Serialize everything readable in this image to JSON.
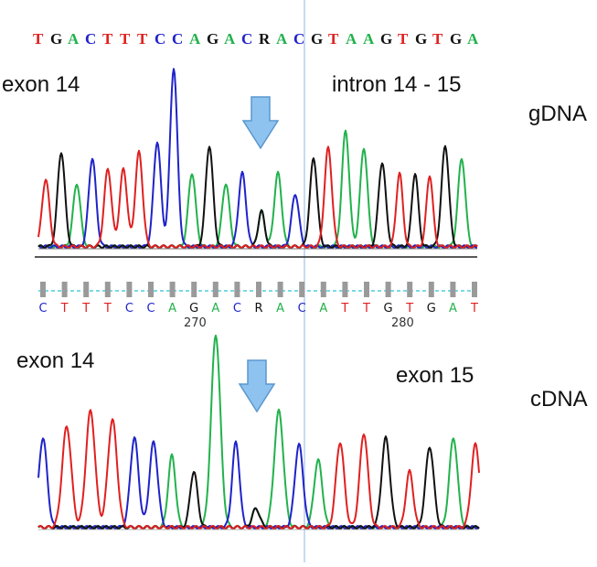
{
  "colors": {
    "A": "#22b24c",
    "C": "#1f23c9",
    "G": "#111111",
    "T": "#e02020",
    "R": "#111111"
  },
  "gdna": {
    "sequence": "TGACTTTCCAGACRACGTAAGTGTGA",
    "label_left": "exon 14",
    "label_right": "intron 14 - 15",
    "tag": "gDNA",
    "peaks": [
      {
        "base": "T",
        "x": 50,
        "h": 0.32,
        "w": 8
      },
      {
        "base": "G",
        "x": 67,
        "h": 0.45,
        "w": 8
      },
      {
        "base": "A",
        "x": 84,
        "h": 0.3,
        "w": 8
      },
      {
        "base": "C",
        "x": 101,
        "h": 0.42,
        "w": 8
      },
      {
        "base": "T",
        "x": 118,
        "h": 0.37,
        "w": 8
      },
      {
        "base": "T",
        "x": 135,
        "h": 0.37,
        "w": 8
      },
      {
        "base": "T",
        "x": 152,
        "h": 0.45,
        "w": 8
      },
      {
        "base": "C",
        "x": 172,
        "h": 0.5,
        "w": 8
      },
      {
        "base": "C",
        "x": 190,
        "h": 0.85,
        "w": 8
      },
      {
        "base": "A",
        "x": 210,
        "h": 0.35,
        "w": 8
      },
      {
        "base": "G",
        "x": 229,
        "h": 0.48,
        "w": 8
      },
      {
        "base": "A",
        "x": 247,
        "h": 0.3,
        "w": 8
      },
      {
        "base": "C",
        "x": 265,
        "h": 0.35,
        "w": 8
      },
      {
        "base": "R",
        "x": 286,
        "h": 0.24,
        "w": 7
      },
      {
        "base": "A",
        "x": 304,
        "h": 0.35,
        "w": 8
      },
      {
        "base": "C",
        "x": 323,
        "h": 0.25,
        "w": 8
      },
      {
        "base": "G",
        "x": 343,
        "h": 0.42,
        "w": 8
      },
      {
        "base": "T",
        "x": 359,
        "h": 0.47,
        "w": 8
      },
      {
        "base": "A",
        "x": 378,
        "h": 0.55,
        "w": 8
      },
      {
        "base": "A",
        "x": 398,
        "h": 0.47,
        "w": 8
      },
      {
        "base": "G",
        "x": 418,
        "h": 0.4,
        "w": 8
      },
      {
        "base": "T",
        "x": 437,
        "h": 0.35,
        "w": 7
      },
      {
        "base": "G",
        "x": 454,
        "h": 0.35,
        "w": 7
      },
      {
        "base": "T",
        "x": 470,
        "h": 0.34,
        "w": 7
      },
      {
        "base": "G",
        "x": 487,
        "h": 0.48,
        "w": 8
      },
      {
        "base": "A",
        "x": 505,
        "h": 0.42,
        "w": 8
      }
    ]
  },
  "cdna": {
    "sequence": "CTTTCCAGACRACATTGTGAT",
    "position_labels": [
      "270",
      "280"
    ],
    "label_left": "exon 14",
    "label_right": "exon 15",
    "tag": "cDNA",
    "peaks": [
      {
        "base": "C",
        "x": 47,
        "h": 0.4,
        "w": 9
      },
      {
        "base": "T",
        "x": 73,
        "h": 0.45,
        "w": 10
      },
      {
        "base": "T",
        "x": 99,
        "h": 0.52,
        "w": 10
      },
      {
        "base": "T",
        "x": 123,
        "h": 0.48,
        "w": 10
      },
      {
        "base": "C",
        "x": 147,
        "h": 0.4,
        "w": 9
      },
      {
        "base": "C",
        "x": 168,
        "h": 0.38,
        "w": 9
      },
      {
        "base": "A",
        "x": 188,
        "h": 0.32,
        "w": 8
      },
      {
        "base": "G",
        "x": 212,
        "h": 0.25,
        "w": 8
      },
      {
        "base": "A",
        "x": 236,
        "h": 0.86,
        "w": 10
      },
      {
        "base": "C",
        "x": 258,
        "h": 0.38,
        "w": 8
      },
      {
        "base": "R",
        "x": 280,
        "h": 0.12,
        "w": 8
      },
      {
        "base": "A",
        "x": 305,
        "h": 0.52,
        "w": 10
      },
      {
        "base": "C",
        "x": 327,
        "h": 0.37,
        "w": 9
      },
      {
        "base": "A",
        "x": 348,
        "h": 0.3,
        "w": 9
      },
      {
        "base": "T",
        "x": 372,
        "h": 0.38,
        "w": 9
      },
      {
        "base": "T",
        "x": 398,
        "h": 0.42,
        "w": 9
      },
      {
        "base": "G",
        "x": 422,
        "h": 0.4,
        "w": 9
      },
      {
        "base": "T",
        "x": 448,
        "h": 0.25,
        "w": 8
      },
      {
        "base": "G",
        "x": 470,
        "h": 0.36,
        "w": 9
      },
      {
        "base": "A",
        "x": 496,
        "h": 0.4,
        "w": 9
      },
      {
        "base": "T",
        "x": 520,
        "h": 0.37,
        "w": 9
      }
    ]
  }
}
